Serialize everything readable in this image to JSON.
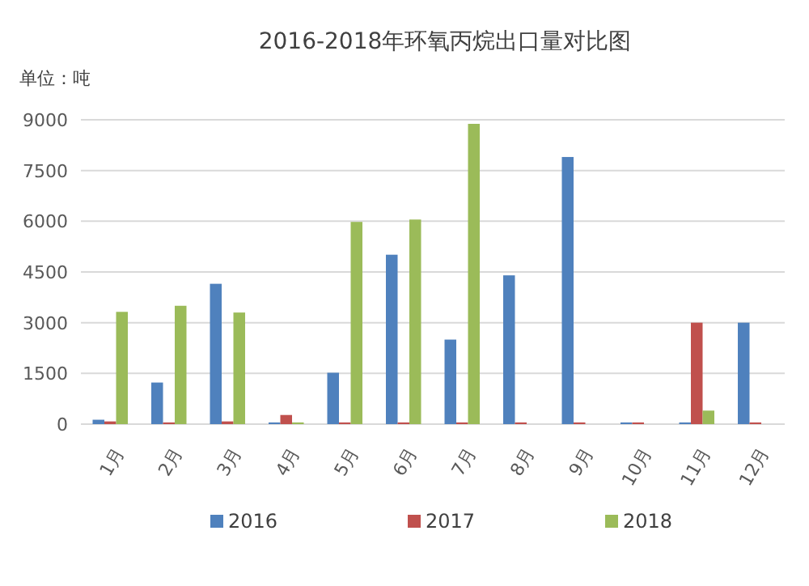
{
  "chart_data": {
    "type": "bar",
    "title": "2016-2018年环氧丙烷出口量对比图",
    "annotations": [
      "单位：吨"
    ],
    "categories": [
      "1月",
      "2月",
      "3月",
      "4月",
      "5月",
      "6月",
      "7月",
      "8月",
      "9月",
      "10月",
      "11月",
      "12月"
    ],
    "series": [
      {
        "name": "2016",
        "color": "#4f81bd",
        "values": [
          130,
          1230,
          4150,
          50,
          1520,
          5010,
          2500,
          4400,
          7900,
          50,
          50,
          3000
        ]
      },
      {
        "name": "2017",
        "color": "#c0504d",
        "values": [
          80,
          50,
          80,
          270,
          50,
          50,
          50,
          50,
          50,
          50,
          3000,
          50
        ]
      },
      {
        "name": "2018",
        "color": "#9bbb59",
        "values": [
          3320,
          3500,
          3300,
          50,
          5980,
          6050,
          8880,
          0,
          0,
          0,
          400,
          0
        ]
      }
    ],
    "ylim": [
      0,
      9000
    ],
    "yticks": [
      0,
      1500,
      3000,
      4500,
      6000,
      7500,
      9000
    ],
    "grid": "y",
    "legend": "bottom"
  }
}
